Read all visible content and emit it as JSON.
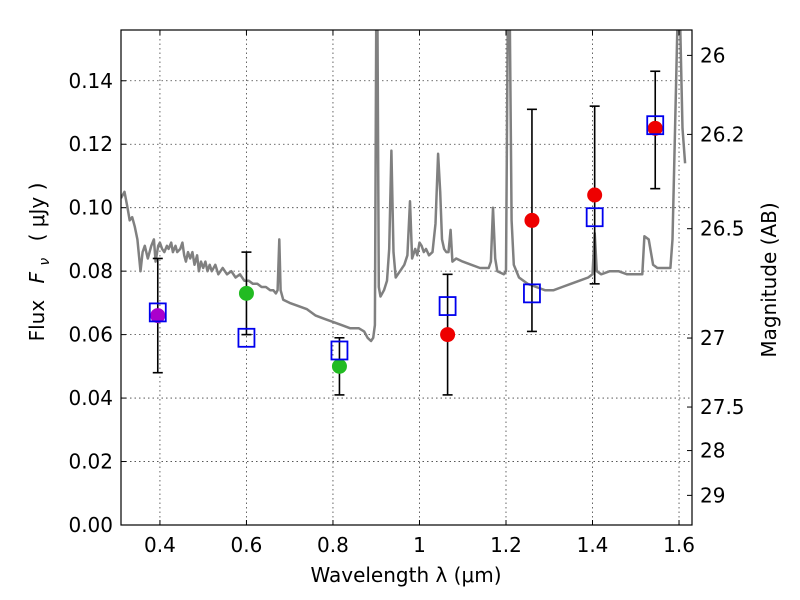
{
  "chart_data": {
    "type": "scatter",
    "xlabel": "Wavelength  λ (μm)",
    "ylabel_parts": {
      "flux": "Flux",
      "symbol": "F",
      "subscript": "ν",
      "unit": "( μJy )"
    },
    "ylabel_right": "Magnitude (AB)",
    "xlim": [
      0.31,
      1.63
    ],
    "ylim": [
      0.0,
      0.156
    ],
    "grid": true,
    "x_ticks": [
      {
        "value": 0.4,
        "label": "0.4"
      },
      {
        "value": 0.6,
        "label": "0.6"
      },
      {
        "value": 0.8,
        "label": "0.8"
      },
      {
        "value": 1.0,
        "label": "1"
      },
      {
        "value": 1.2,
        "label": "1.2"
      },
      {
        "value": 1.4,
        "label": "1.4"
      },
      {
        "value": 1.6,
        "label": "1.6"
      }
    ],
    "y_ticks": [
      {
        "value": 0.0,
        "label": "0.00"
      },
      {
        "value": 0.02,
        "label": "0.02"
      },
      {
        "value": 0.04,
        "label": "0.04"
      },
      {
        "value": 0.06,
        "label": "0.06"
      },
      {
        "value": 0.08,
        "label": "0.08"
      },
      {
        "value": 0.1,
        "label": "0.10"
      },
      {
        "value": 0.12,
        "label": "0.12"
      },
      {
        "value": 0.14,
        "label": "0.14"
      }
    ],
    "right_ticks": [
      {
        "mag": 26.0,
        "label": "26"
      },
      {
        "mag": 26.2,
        "label": "26.2"
      },
      {
        "mag": 26.5,
        "label": "26.5"
      },
      {
        "mag": 27.0,
        "label": "27"
      },
      {
        "mag": 27.5,
        "label": "27.5"
      },
      {
        "mag": 28.0,
        "label": "28"
      },
      {
        "mag": 29.0,
        "label": "29"
      }
    ],
    "observed": [
      {
        "x": 0.395,
        "y": 0.066,
        "err_low": 0.048,
        "err_high": 0.084,
        "color": "#aa00cc"
      },
      {
        "x": 0.6,
        "y": 0.073,
        "err_low": 0.06,
        "err_high": 0.086,
        "color": "#22bb22"
      },
      {
        "x": 0.815,
        "y": 0.05,
        "err_low": 0.041,
        "err_high": 0.059,
        "color": "#22bb22"
      },
      {
        "x": 1.065,
        "y": 0.06,
        "err_low": 0.041,
        "err_high": 0.079,
        "color": "#ee0000"
      },
      {
        "x": 1.26,
        "y": 0.096,
        "err_low": 0.061,
        "err_high": 0.131,
        "color": "#ee0000"
      },
      {
        "x": 1.405,
        "y": 0.104,
        "err_low": 0.076,
        "err_high": 0.132,
        "color": "#ee0000"
      },
      {
        "x": 1.545,
        "y": 0.125,
        "err_low": 0.106,
        "err_high": 0.143,
        "color": "#ee0000"
      }
    ],
    "model_points": {
      "color": "#0000ee",
      "x": [
        0.395,
        0.6,
        0.815,
        1.065,
        1.26,
        1.405,
        1.545
      ],
      "y": [
        0.067,
        0.059,
        0.055,
        0.069,
        0.073,
        0.097,
        0.126
      ]
    },
    "model_sed": {
      "color": "#808080",
      "points": [
        [
          0.31,
          0.103
        ],
        [
          0.318,
          0.105
        ],
        [
          0.325,
          0.1
        ],
        [
          0.33,
          0.096
        ],
        [
          0.336,
          0.097
        ],
        [
          0.342,
          0.094
        ],
        [
          0.348,
          0.09
        ],
        [
          0.355,
          0.08
        ],
        [
          0.36,
          0.086
        ],
        [
          0.365,
          0.088
        ],
        [
          0.372,
          0.084
        ],
        [
          0.38,
          0.088
        ],
        [
          0.386,
          0.09
        ],
        [
          0.39,
          0.083
        ],
        [
          0.396,
          0.088
        ],
        [
          0.4,
          0.089
        ],
        [
          0.405,
          0.087
        ],
        [
          0.41,
          0.086
        ],
        [
          0.416,
          0.088
        ],
        [
          0.42,
          0.087
        ],
        [
          0.426,
          0.089
        ],
        [
          0.43,
          0.086
        ],
        [
          0.436,
          0.088
        ],
        [
          0.44,
          0.086
        ],
        [
          0.447,
          0.087
        ],
        [
          0.452,
          0.089
        ],
        [
          0.456,
          0.085
        ],
        [
          0.46,
          0.083
        ],
        [
          0.465,
          0.086
        ],
        [
          0.47,
          0.084
        ],
        [
          0.475,
          0.086
        ],
        [
          0.48,
          0.082
        ],
        [
          0.486,
          0.085
        ],
        [
          0.49,
          0.08
        ],
        [
          0.495,
          0.083
        ],
        [
          0.5,
          0.081
        ],
        [
          0.505,
          0.083
        ],
        [
          0.51,
          0.08
        ],
        [
          0.515,
          0.082
        ],
        [
          0.52,
          0.08
        ],
        [
          0.528,
          0.082
        ],
        [
          0.535,
          0.079
        ],
        [
          0.545,
          0.081
        ],
        [
          0.555,
          0.079
        ],
        [
          0.565,
          0.08
        ],
        [
          0.575,
          0.078
        ],
        [
          0.585,
          0.079
        ],
        [
          0.595,
          0.077
        ],
        [
          0.605,
          0.077
        ],
        [
          0.615,
          0.076
        ],
        [
          0.625,
          0.076
        ],
        [
          0.635,
          0.075
        ],
        [
          0.645,
          0.075
        ],
        [
          0.655,
          0.074
        ],
        [
          0.662,
          0.074
        ],
        [
          0.668,
          0.073
        ],
        [
          0.672,
          0.074
        ],
        [
          0.676,
          0.09
        ],
        [
          0.679,
          0.074
        ],
        [
          0.685,
          0.071
        ],
        [
          0.7,
          0.07
        ],
        [
          0.72,
          0.069
        ],
        [
          0.74,
          0.068
        ],
        [
          0.76,
          0.066
        ],
        [
          0.78,
          0.065
        ],
        [
          0.8,
          0.064
        ],
        [
          0.82,
          0.063
        ],
        [
          0.84,
          0.062
        ],
        [
          0.86,
          0.062
        ],
        [
          0.872,
          0.061
        ],
        [
          0.88,
          0.059
        ],
        [
          0.888,
          0.058
        ],
        [
          0.893,
          0.059
        ],
        [
          0.897,
          0.063
        ],
        [
          0.9,
          0.156
        ],
        [
          0.903,
          0.156
        ],
        [
          0.906,
          0.075
        ],
        [
          0.91,
          0.072
        ],
        [
          0.918,
          0.074
        ],
        [
          0.925,
          0.077
        ],
        [
          0.93,
          0.087
        ],
        [
          0.935,
          0.118
        ],
        [
          0.94,
          0.086
        ],
        [
          0.945,
          0.078
        ],
        [
          0.955,
          0.08
        ],
        [
          0.965,
          0.082
        ],
        [
          0.972,
          0.085
        ],
        [
          0.978,
          0.102
        ],
        [
          0.983,
          0.084
        ],
        [
          0.99,
          0.087
        ],
        [
          0.995,
          0.085
        ],
        [
          1.0,
          0.089
        ],
        [
          1.005,
          0.088
        ],
        [
          1.01,
          0.086
        ],
        [
          1.015,
          0.087
        ],
        [
          1.022,
          0.085
        ],
        [
          1.03,
          0.086
        ],
        [
          1.037,
          0.095
        ],
        [
          1.043,
          0.117
        ],
        [
          1.048,
          0.105
        ],
        [
          1.052,
          0.09
        ],
        [
          1.057,
          0.087
        ],
        [
          1.062,
          0.086
        ],
        [
          1.067,
          0.086
        ],
        [
          1.072,
          0.093
        ],
        [
          1.076,
          0.083
        ],
        [
          1.085,
          0.084
        ],
        [
          1.1,
          0.083
        ],
        [
          1.12,
          0.082
        ],
        [
          1.14,
          0.081
        ],
        [
          1.16,
          0.081
        ],
        [
          1.165,
          0.083
        ],
        [
          1.17,
          0.1
        ],
        [
          1.175,
          0.084
        ],
        [
          1.18,
          0.08
        ],
        [
          1.195,
          0.079
        ],
        [
          1.2,
          0.08
        ],
        [
          1.204,
          0.156
        ],
        [
          1.209,
          0.156
        ],
        [
          1.213,
          0.096
        ],
        [
          1.218,
          0.082
        ],
        [
          1.23,
          0.078
        ],
        [
          1.25,
          0.076
        ],
        [
          1.27,
          0.075
        ],
        [
          1.29,
          0.074
        ],
        [
          1.31,
          0.074
        ],
        [
          1.33,
          0.075
        ],
        [
          1.35,
          0.076
        ],
        [
          1.37,
          0.077
        ],
        [
          1.39,
          0.078
        ],
        [
          1.4,
          0.079
        ],
        [
          1.405,
          0.092
        ],
        [
          1.41,
          0.08
        ],
        [
          1.42,
          0.079
        ],
        [
          1.44,
          0.08
        ],
        [
          1.46,
          0.08
        ],
        [
          1.48,
          0.079
        ],
        [
          1.5,
          0.079
        ],
        [
          1.515,
          0.079
        ],
        [
          1.52,
          0.091
        ],
        [
          1.53,
          0.09
        ],
        [
          1.54,
          0.082
        ],
        [
          1.55,
          0.081
        ],
        [
          1.56,
          0.081
        ],
        [
          1.58,
          0.081
        ],
        [
          1.585,
          0.09
        ],
        [
          1.59,
          0.12
        ],
        [
          1.596,
          0.156
        ],
        [
          1.603,
          0.156
        ],
        [
          1.608,
          0.125
        ],
        [
          1.614,
          0.114
        ]
      ]
    }
  }
}
